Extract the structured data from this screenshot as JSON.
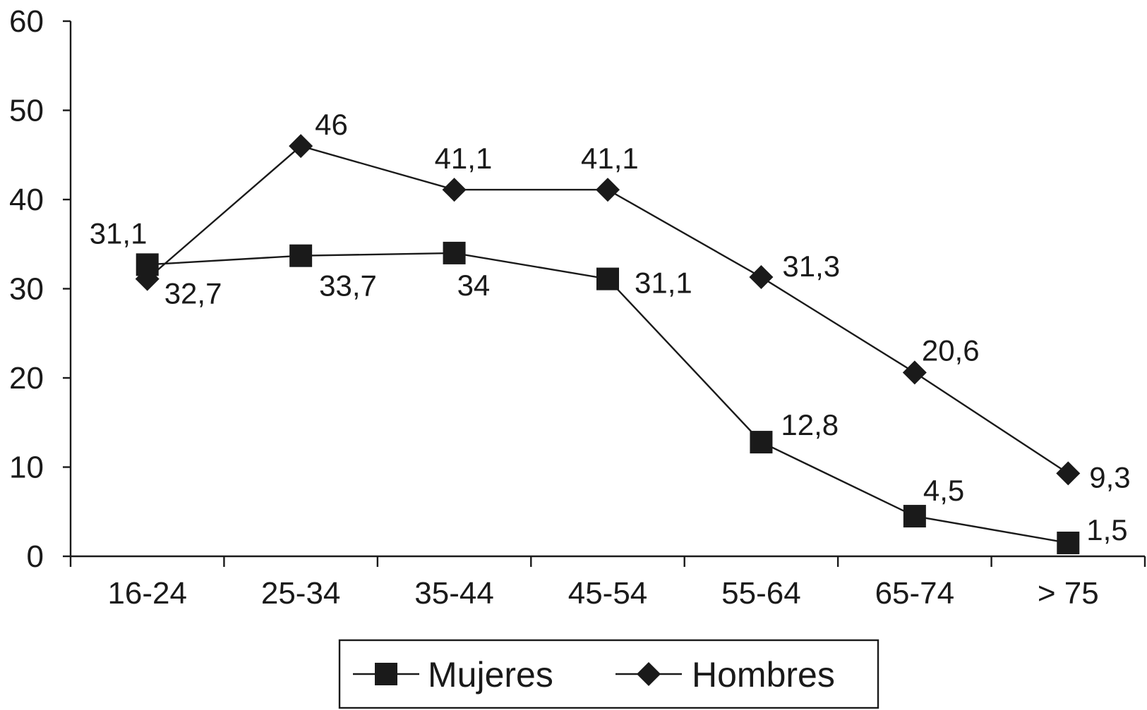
{
  "chart_data": {
    "type": "line",
    "categories": [
      "16-24",
      "25-34",
      "35-44",
      "45-54",
      "55-64",
      "65-74",
      "> 75"
    ],
    "yticks": [
      "0",
      "10",
      "20",
      "30",
      "40",
      "50",
      "60"
    ],
    "ylim": [
      0,
      60
    ],
    "grid": false,
    "legend_position": "bottom",
    "series": [
      {
        "name": "Mujeres",
        "marker": "square",
        "values": [
          32.7,
          33.7,
          34,
          31.1,
          12.8,
          4.5,
          1.5
        ],
        "labels": [
          "32,7",
          "33,7",
          "34",
          "31,1",
          "12,8",
          "4,5",
          "1,5"
        ],
        "color": "#1a1a1a"
      },
      {
        "name": "Hombres",
        "marker": "diamond",
        "values": [
          31.1,
          46,
          41.1,
          41.1,
          31.3,
          20.6,
          9.3
        ],
        "labels": [
          "31,1",
          "46",
          "41,1",
          "41,1",
          "31,3",
          "20,6",
          "9,3"
        ],
        "color": "#1a1a1a"
      }
    ]
  }
}
